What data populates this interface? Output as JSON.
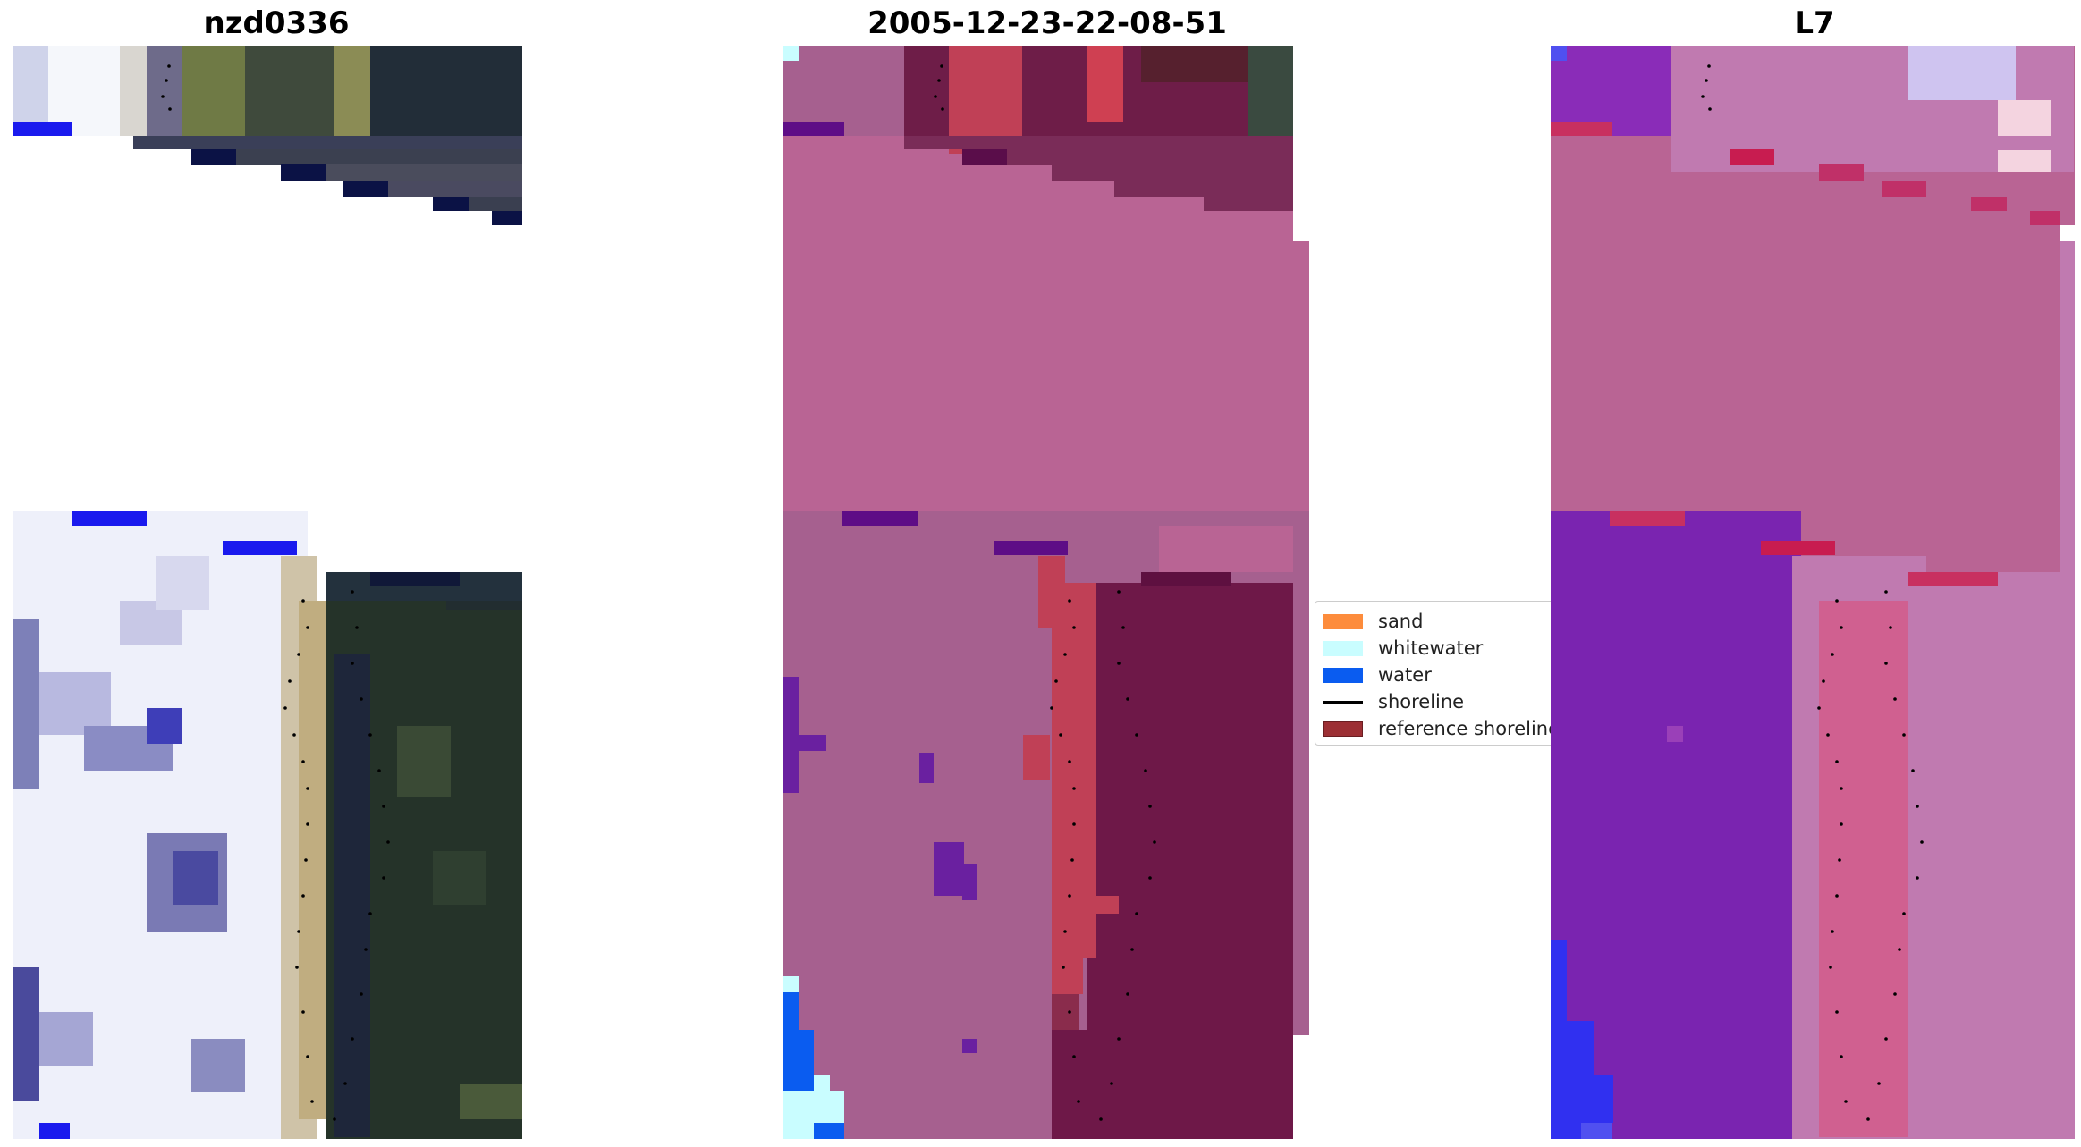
{
  "panels": [
    {
      "title": "nzd0336"
    },
    {
      "title": "2005-12-23-22-08-51"
    },
    {
      "title": "L7"
    }
  ],
  "legend": {
    "items": [
      {
        "label": "sand",
        "color": "#fd8c3c"
      },
      {
        "label": "whitewater",
        "color": "#c9fdff"
      },
      {
        "label": "water",
        "color": "#0a5cf0"
      },
      {
        "label": "shoreline",
        "color": "#000000"
      },
      {
        "label": "reference shoreline",
        "color": "#9c2f34"
      }
    ]
  }
}
